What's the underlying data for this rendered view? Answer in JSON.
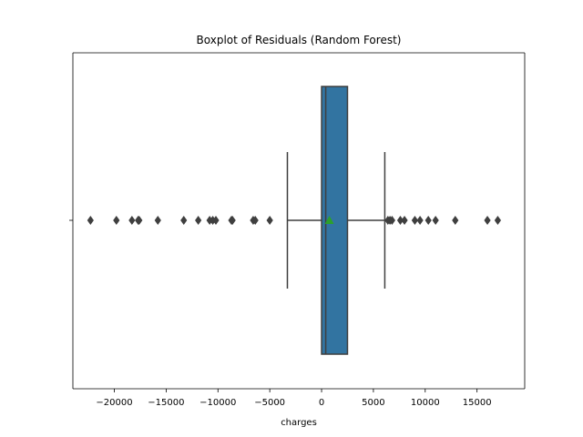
{
  "chart_data": {
    "type": "box",
    "title": "Boxplot of Residuals (Random Forest)",
    "xlabel": "charges",
    "ylabel": "",
    "xlim": [
      -24000,
      19600
    ],
    "xticks": [
      -20000,
      -15000,
      -10000,
      -5000,
      0,
      5000,
      10000,
      15000
    ],
    "xtick_labels": [
      "−20000",
      "−15000",
      "−10000",
      "−5000",
      "0",
      "5000",
      "10000",
      "15000"
    ],
    "orientation": "horizontal",
    "box": {
      "whisker_low": -3300,
      "q1": 0,
      "median": 400,
      "q3": 2500,
      "whisker_high": 6100,
      "mean": 750
    },
    "outliers": [
      -22300,
      -19800,
      -18300,
      -17700,
      -17600,
      -15800,
      -13300,
      -11900,
      -10800,
      -10500,
      -10200,
      -8700,
      -8600,
      -6600,
      -6400,
      -5000,
      6400,
      6600,
      6800,
      7600,
      8000,
      9000,
      9500,
      10300,
      11000,
      12900,
      16000,
      17000
    ],
    "colors": {
      "box_fill": "#3274a1",
      "line": "#3f3f3f",
      "mean_marker": "#2ca02c",
      "outlier": "#3f3f3f"
    },
    "grid": false
  }
}
